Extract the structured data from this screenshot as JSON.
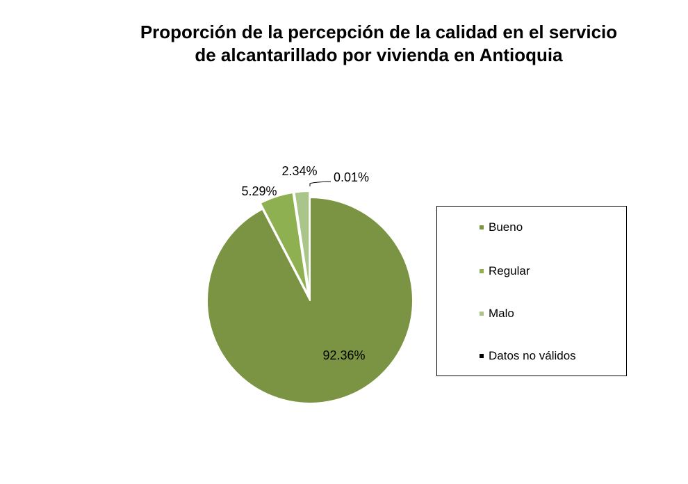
{
  "chart_data": {
    "type": "pie",
    "title_lines": [
      "Proporción de la percepción de la calidad en el servicio",
      "de alcantarillado por vivienda en Antioquia"
    ],
    "slices": [
      {
        "name": "Bueno",
        "value": 92.36,
        "label": "92.36%",
        "color": "#7a9443"
      },
      {
        "name": "Regular",
        "value": 5.29,
        "label": "5.29%",
        "color": "#8fb050"
      },
      {
        "name": "Malo",
        "value": 2.34,
        "label": "2.34%",
        "color": "#a9c58a"
      },
      {
        "name": "Datos no válidos",
        "value": 0.01,
        "label": "0.01%",
        "color": "#000000"
      }
    ],
    "legend_position": "right"
  }
}
